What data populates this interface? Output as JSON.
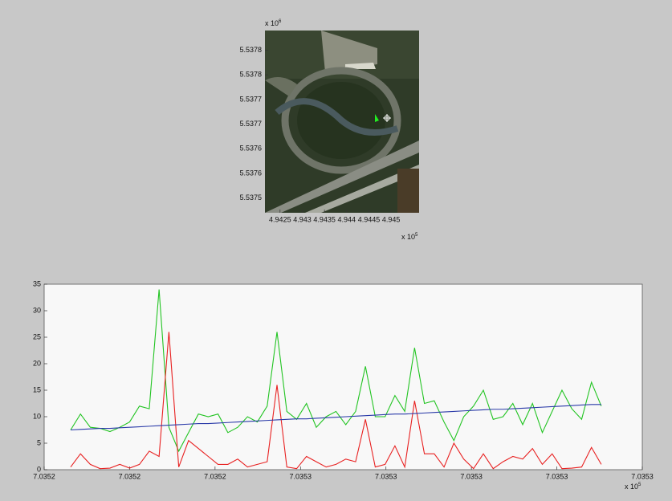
{
  "chart_data": [
    {
      "type": "image",
      "y_multiplier": {
        "base": "x 10",
        "power": "6"
      },
      "x_multiplier": {
        "base": "x 10",
        "power": "5"
      },
      "ylim": [
        5.53747,
        5.53784
      ],
      "yticks": [
        {
          "value": 5.5378,
          "label": "5.5378"
        },
        {
          "value": 5.53775,
          "label": "5.5378"
        },
        {
          "value": 5.5377,
          "label": "5.5377"
        },
        {
          "value": 5.53765,
          "label": "5.5377"
        },
        {
          "value": 5.5376,
          "label": "5.5376"
        },
        {
          "value": 5.53755,
          "label": "5.5376"
        },
        {
          "value": 5.5375,
          "label": "5.5375"
        }
      ],
      "xlim": [
        4.94216,
        4.94563
      ],
      "xticks": [
        4.9425,
        4.943,
        4.9435,
        4.944,
        4.9445,
        4.945
      ]
    },
    {
      "type": "line",
      "x_multiplier": {
        "base": "x 10",
        "power": "5"
      },
      "ylim": [
        0,
        35
      ],
      "yticks": [
        0,
        5,
        10,
        15,
        20,
        25,
        30,
        35
      ],
      "xlim": [
        7.0352,
        7.03534
      ],
      "xticks": [
        7.0352,
        {
          "value": 7.03522,
          "label": "7.0352"
        },
        {
          "value": 7.03524,
          "label": "7.0352"
        },
        {
          "value": 7.03526,
          "label": "7.0353"
        },
        {
          "value": 7.03528,
          "label": "7.0353"
        },
        {
          "value": 7.0353,
          "label": "7.0353"
        },
        {
          "value": 7.03532,
          "label": "7.0353"
        },
        {
          "value": 7.03534,
          "label": "7.0353"
        }
      ],
      "x": [
        7.0352062,
        7.0352085,
        7.0352108,
        7.0352131,
        7.0352154,
        7.0352177,
        7.03522,
        7.0352223,
        7.0352246,
        7.0352269,
        7.0352292,
        7.0352315,
        7.0352338,
        7.0352361,
        7.0352384,
        7.0352407,
        7.035243,
        7.0352453,
        7.0352476,
        7.0352499,
        7.0352522,
        7.0352545,
        7.0352568,
        7.0352591,
        7.0352614,
        7.0352637,
        7.035266,
        7.0352683,
        7.0352706,
        7.0352729,
        7.0352752,
        7.0352775,
        7.0352798,
        7.0352821,
        7.0352844,
        7.0352867,
        7.035289,
        7.0352913,
        7.0352936,
        7.0352959,
        7.0352982,
        7.0353005,
        7.0353028,
        7.0353051,
        7.0353074,
        7.0353097,
        7.035312,
        7.0353143,
        7.0353166,
        7.0353189,
        7.0353212,
        7.0353235,
        7.0353258,
        7.0353281,
        7.0353304
      ],
      "series": [
        {
          "color": "#22c422",
          "values": [
            7.5,
            10.5,
            8,
            7.8,
            7.2,
            8,
            9,
            12,
            11.5,
            34,
            8,
            3.5,
            7,
            10.5,
            10,
            10.5,
            7,
            8,
            10,
            9,
            12,
            26,
            11,
            9.5,
            12.5,
            8,
            10,
            11,
            8.5,
            11,
            19.5,
            10,
            10,
            14,
            11,
            23,
            12.5,
            13,
            9,
            5.5,
            10,
            12,
            15,
            9.5,
            10,
            12.5,
            8.5,
            12.5,
            7,
            11,
            15,
            11.5,
            9.5,
            16.5,
            12
          ]
        },
        {
          "color": "#e82020",
          "values": [
            0.5,
            3,
            1,
            0.2,
            0.3,
            1,
            0.3,
            1,
            3.5,
            2.5,
            26,
            0.5,
            5.5,
            4,
            2.5,
            1,
            1,
            2,
            0.5,
            1,
            1.5,
            16,
            0.5,
            0.2,
            2.5,
            1.5,
            0.5,
            1,
            2,
            1.5,
            9.5,
            0.5,
            1,
            4.5,
            0.5,
            13,
            3,
            3,
            0.5,
            5,
            2,
            0.2,
            3,
            0.2,
            1.5,
            2.5,
            2,
            4,
            1,
            3,
            0.2,
            0.3,
            0.5,
            4.2,
            1
          ]
        },
        {
          "color": "#2a3aa8",
          "values": [
            7.5,
            7.6,
            7.7,
            7.8,
            7.8,
            7.9,
            8.0,
            8.1,
            8.2,
            8.3,
            8.4,
            8.5,
            8.6,
            8.7,
            8.7,
            8.8,
            8.9,
            9.0,
            9.1,
            9.2,
            9.3,
            9.4,
            9.5,
            9.6,
            9.6,
            9.7,
            9.8,
            9.9,
            10.0,
            10.1,
            10.2,
            10.3,
            10.4,
            10.5,
            10.5,
            10.6,
            10.7,
            10.8,
            10.9,
            11.0,
            11.1,
            11.2,
            11.3,
            11.4,
            11.4,
            11.5,
            11.6,
            11.7,
            11.8,
            11.9,
            12.0,
            12.1,
            12.2,
            12.3,
            12.3
          ]
        }
      ]
    }
  ]
}
